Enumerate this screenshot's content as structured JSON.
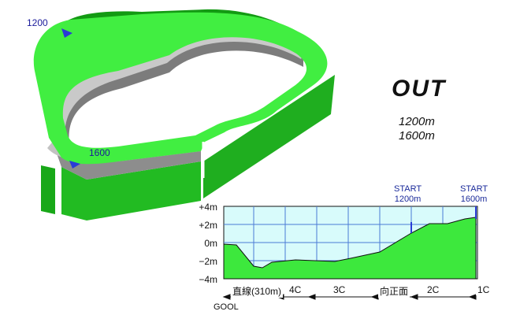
{
  "course": {
    "marker_1200": "1200",
    "marker_1600": "1600"
  },
  "title": "OUT",
  "distances": [
    "1200m",
    "1600m"
  ],
  "profile": {
    "y_ticks": [
      "+4m",
      "+2m",
      "0m",
      "−2m",
      "−4m"
    ],
    "ylim": [
      -4,
      4
    ],
    "starts": [
      {
        "label": "START",
        "distance": "1200m"
      },
      {
        "label": "START",
        "distance": "1600m"
      }
    ],
    "segments": [
      "直線(310m)",
      "4C",
      "3C",
      "向正面",
      "2C",
      "1C"
    ],
    "goal_label": "GOOL",
    "colors": {
      "fill": "#3de83d",
      "bg": "#d8fbfb",
      "grid": "#4a7bd6",
      "start_line": "#2a3bd6"
    }
  }
}
